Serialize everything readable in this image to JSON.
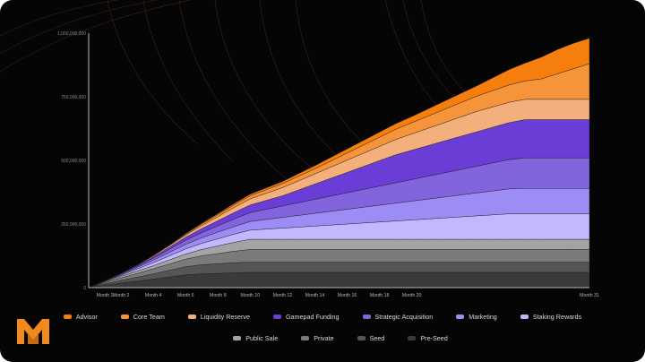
{
  "chart_data": {
    "type": "area",
    "stacked": true,
    "title": "",
    "xlabel": "",
    "ylabel": "",
    "ylim": [
      0,
      1000000000
    ],
    "x": [
      0,
      1,
      2,
      3,
      4,
      5,
      6,
      7,
      8,
      9,
      10,
      11,
      12,
      13,
      14,
      15,
      16,
      17,
      18,
      19,
      20,
      21,
      22,
      23,
      24,
      25,
      26,
      27,
      28,
      29,
      30,
      31
    ],
    "x_tick_values": [
      1,
      2,
      4,
      6,
      8,
      10,
      12,
      14,
      16,
      18,
      20,
      31
    ],
    "x_tick_labels": [
      "Month 1",
      "Month 2",
      "Month 4",
      "Month 6",
      "Month 8",
      "Month 10",
      "Month 12",
      "Month 14",
      "Month 16",
      "Month 18",
      "Month 20",
      "Month 31"
    ],
    "y_ticks": [
      0,
      250000000,
      500000000,
      750000000,
      1000000000
    ],
    "y_tick_labels": [
      "0",
      "250,000,000",
      "500,000,000",
      "750,000,000",
      "1,000,000,000"
    ],
    "grid": false,
    "legend_position": "bottom",
    "series": [
      {
        "name": "Pre-Seed",
        "color": "#3a3a3a",
        "values": [
          0,
          10000000,
          18000000,
          26000000,
          34000000,
          42000000,
          50000000,
          54000000,
          56000000,
          58000000,
          60000000,
          60000000,
          60000000,
          60000000,
          60000000,
          60000000,
          60000000,
          60000000,
          60000000,
          60000000,
          60000000,
          60000000,
          60000000,
          60000000,
          60000000,
          60000000,
          60000000,
          60000000,
          60000000,
          60000000,
          60000000,
          60000000
        ]
      },
      {
        "name": "Seed",
        "color": "#555555",
        "values": [
          0,
          5000000,
          10000000,
          15000000,
          20000000,
          26000000,
          32000000,
          36000000,
          38000000,
          40000000,
          40000000,
          40000000,
          40000000,
          40000000,
          40000000,
          40000000,
          40000000,
          40000000,
          40000000,
          40000000,
          40000000,
          40000000,
          40000000,
          40000000,
          40000000,
          40000000,
          40000000,
          40000000,
          40000000,
          40000000,
          40000000,
          40000000
        ]
      },
      {
        "name": "Private",
        "color": "#7a7a7a",
        "values": [
          0,
          5000000,
          10000000,
          15000000,
          20000000,
          25000000,
          30000000,
          35000000,
          40000000,
          45000000,
          50000000,
          50000000,
          50000000,
          50000000,
          50000000,
          50000000,
          50000000,
          50000000,
          50000000,
          50000000,
          50000000,
          50000000,
          50000000,
          50000000,
          50000000,
          50000000,
          50000000,
          50000000,
          50000000,
          50000000,
          50000000,
          50000000
        ]
      },
      {
        "name": "Public Sale",
        "color": "#a3a3a3",
        "values": [
          0,
          3000000,
          6000000,
          9000000,
          12000000,
          16000000,
          20000000,
          25000000,
          30000000,
          35000000,
          40000000,
          40000000,
          40000000,
          40000000,
          40000000,
          40000000,
          40000000,
          40000000,
          40000000,
          40000000,
          40000000,
          40000000,
          40000000,
          40000000,
          40000000,
          40000000,
          40000000,
          40000000,
          40000000,
          40000000,
          40000000,
          40000000
        ]
      },
      {
        "name": "Staking Rewards",
        "color": "#c4b6ff",
        "values": [
          0,
          2000000,
          4000000,
          8000000,
          12000000,
          16000000,
          20000000,
          24000000,
          28000000,
          32000000,
          36000000,
          40000000,
          44000000,
          48000000,
          52000000,
          56000000,
          60000000,
          64000000,
          68000000,
          72000000,
          76000000,
          80000000,
          84000000,
          88000000,
          92000000,
          96000000,
          100000000,
          100000000,
          100000000,
          100000000,
          100000000,
          100000000
        ]
      },
      {
        "name": "Marketing",
        "color": "#9d8cf4",
        "values": [
          0,
          1000000,
          3000000,
          6000000,
          10000000,
          14000000,
          18000000,
          22000000,
          26000000,
          30000000,
          34000000,
          38000000,
          42000000,
          46000000,
          50000000,
          54000000,
          58000000,
          62000000,
          66000000,
          70000000,
          74000000,
          78000000,
          82000000,
          86000000,
          90000000,
          94000000,
          98000000,
          100000000,
          100000000,
          100000000,
          100000000,
          100000000
        ]
      },
      {
        "name": "Strategic Acquisition",
        "color": "#8264dd",
        "values": [
          0,
          1000000,
          3000000,
          5000000,
          8000000,
          12000000,
          16000000,
          20000000,
          25000000,
          30000000,
          35000000,
          40000000,
          45000000,
          50000000,
          55000000,
          60000000,
          65000000,
          70000000,
          75000000,
          80000000,
          85000000,
          90000000,
          95000000,
          100000000,
          105000000,
          110000000,
          115000000,
          120000000,
          120000000,
          120000000,
          120000000,
          120000000
        ]
      },
      {
        "name": "Gamepad Funding",
        "color": "#6a3ed6",
        "values": [
          0,
          0,
          1000000,
          3000000,
          5000000,
          8000000,
          12000000,
          16000000,
          20000000,
          25000000,
          30000000,
          35000000,
          40000000,
          50000000,
          60000000,
          70000000,
          80000000,
          90000000,
          100000000,
          110000000,
          115000000,
          120000000,
          125000000,
          130000000,
          135000000,
          140000000,
          145000000,
          150000000,
          150000000,
          150000000,
          150000000,
          150000000
        ]
      },
      {
        "name": "Liquidity Reserve",
        "color": "#f3b07c",
        "values": [
          0,
          0,
          1000000,
          2000000,
          4000000,
          6000000,
          8000000,
          12000000,
          16000000,
          20000000,
          24000000,
          28000000,
          32000000,
          36000000,
          40000000,
          44000000,
          48000000,
          52000000,
          56000000,
          60000000,
          64000000,
          68000000,
          72000000,
          76000000,
          80000000,
          80000000,
          80000000,
          80000000,
          80000000,
          80000000,
          80000000,
          80000000
        ]
      },
      {
        "name": "Core Team",
        "color": "#f6943b",
        "values": [
          0,
          0,
          0,
          0,
          1000000,
          2000000,
          4000000,
          6000000,
          8000000,
          10000000,
          12000000,
          14000000,
          16000000,
          18000000,
          20000000,
          24000000,
          28000000,
          32000000,
          36000000,
          40000000,
          44000000,
          48000000,
          52000000,
          56000000,
          60000000,
          64000000,
          68000000,
          72000000,
          80000000,
          100000000,
          120000000,
          140000000
        ]
      },
      {
        "name": "Advisor",
        "color": "#f57e0c",
        "values": [
          0,
          0,
          0,
          0,
          0,
          1000000,
          2000000,
          3000000,
          4000000,
          5000000,
          6000000,
          7000000,
          8000000,
          10000000,
          12000000,
          14000000,
          16000000,
          18000000,
          20000000,
          22000000,
          24000000,
          28000000,
          32000000,
          36000000,
          40000000,
          50000000,
          60000000,
          70000000,
          85000000,
          95000000,
          100000000,
          100000000
        ]
      }
    ]
  },
  "legend": {
    "row1": [
      {
        "label": "Advisor",
        "color": "#f57e0c"
      },
      {
        "label": "Core Team",
        "color": "#f6943b"
      },
      {
        "label": "Liquidity Reserve",
        "color": "#f3b07c"
      },
      {
        "label": "Gamepad Funding",
        "color": "#6a3ed6"
      },
      {
        "label": "Strategic Acquisition",
        "color": "#8264dd"
      },
      {
        "label": "Marketing",
        "color": "#9d8cf4"
      },
      {
        "label": "Staking Rewards",
        "color": "#c4b6ff"
      }
    ],
    "row2": [
      {
        "label": "Public Sale",
        "color": "#a3a3a3"
      },
      {
        "label": "Private",
        "color": "#7a7a7a"
      },
      {
        "label": "Seed",
        "color": "#555555"
      },
      {
        "label": "Pre-Seed",
        "color": "#3a3a3a"
      }
    ]
  },
  "logo": {
    "icon": "m-monogram-logo",
    "color": "#f08a1c"
  }
}
